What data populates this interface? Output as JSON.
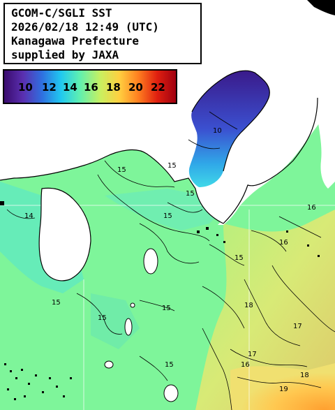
{
  "header": {
    "satellite_line": "GCOM-C/SGLI SST",
    "datetime_line": "2026/02/18 12:49 (UTC)",
    "region_line": "Kanagawa Prefecture",
    "credit_line": "supplied by JAXA"
  },
  "colorbar": {
    "ticks": [
      "10",
      "12",
      "14",
      "16",
      "18",
      "20",
      "22"
    ],
    "colors": [
      "#3a0b6e",
      "#5a2fb0",
      "#2f6fe0",
      "#20c8f0",
      "#5ff0b0",
      "#c8f060",
      "#ffd040",
      "#ff8020",
      "#e02010",
      "#a00010"
    ]
  },
  "contour_labels": [
    "15",
    "15",
    "15",
    "15",
    "15",
    "15",
    "15",
    "15",
    "15",
    "16",
    "16",
    "16",
    "17",
    "17",
    "18",
    "18",
    "19",
    "14",
    "10"
  ],
  "colors": {
    "land": "#ffffff",
    "sea_base": "#7ef59a",
    "sea_cool": "#5ce6c8",
    "bay_cold": "#3a4fd0",
    "sea_warm": "#f0e070",
    "sea_hot": "#ffb040"
  }
}
